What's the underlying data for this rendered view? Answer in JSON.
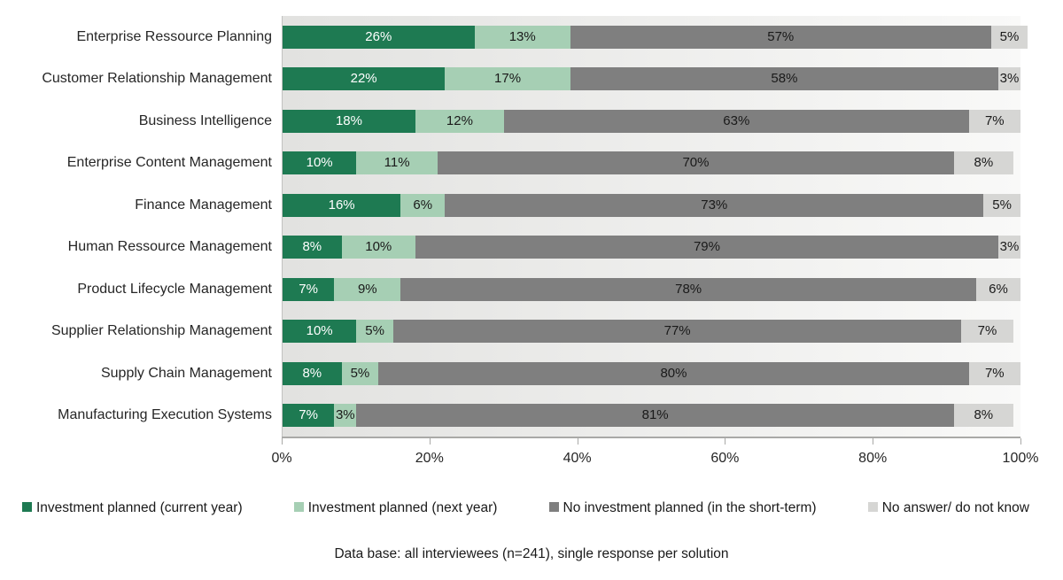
{
  "chart_data": {
    "type": "bar",
    "orientation": "horizontal",
    "stacked": true,
    "categories": [
      "Enterprise Ressource Planning",
      "Customer Relationship Management",
      "Business Intelligence",
      "Enterprise Content Management",
      "Finance Management",
      "Human Ressource Management",
      "Product Lifecycle Management",
      "Supplier Relationship Management",
      "Supply Chain Management",
      "Manufacturing Execution Systems"
    ],
    "series": [
      {
        "name": "Investment planned (current year)",
        "color": "#1e7a52",
        "label_color": "#ffffff",
        "values": [
          26,
          22,
          18,
          10,
          16,
          8,
          7,
          10,
          8,
          7
        ]
      },
      {
        "name": "Investment planned (next year)",
        "color": "#a6cfb4",
        "label_color": "#1a1a1a",
        "values": [
          13,
          17,
          12,
          11,
          6,
          10,
          9,
          5,
          5,
          3
        ]
      },
      {
        "name": "No investment planned (in the short-term)",
        "color": "#7f7f7f",
        "label_color": "#1a1a1a",
        "values": [
          57,
          58,
          63,
          70,
          73,
          79,
          78,
          77,
          80,
          81
        ]
      },
      {
        "name": "No answer/ do not know",
        "color": "#d6d6d4",
        "label_color": "#1a1a1a",
        "values": [
          5,
          3,
          7,
          8,
          5,
          3,
          6,
          7,
          7,
          8
        ]
      }
    ],
    "value_suffix": "%",
    "xlabel": "",
    "ylabel": "",
    "xlim": [
      0,
      100
    ],
    "x_ticks": [
      "0%",
      "20%",
      "40%",
      "60%",
      "80%",
      "100%"
    ],
    "x_tick_positions": [
      0,
      20,
      40,
      60,
      80,
      100
    ],
    "grid": false,
    "legend_position": "bottom",
    "plot_bg_gradient": [
      "#e2e2e0",
      "#f9f9f8"
    ],
    "axis_color": "#a9a9a7",
    "text_color": "#262626"
  },
  "footnote": "Data base: all interviewees (n=241), single response per solution"
}
